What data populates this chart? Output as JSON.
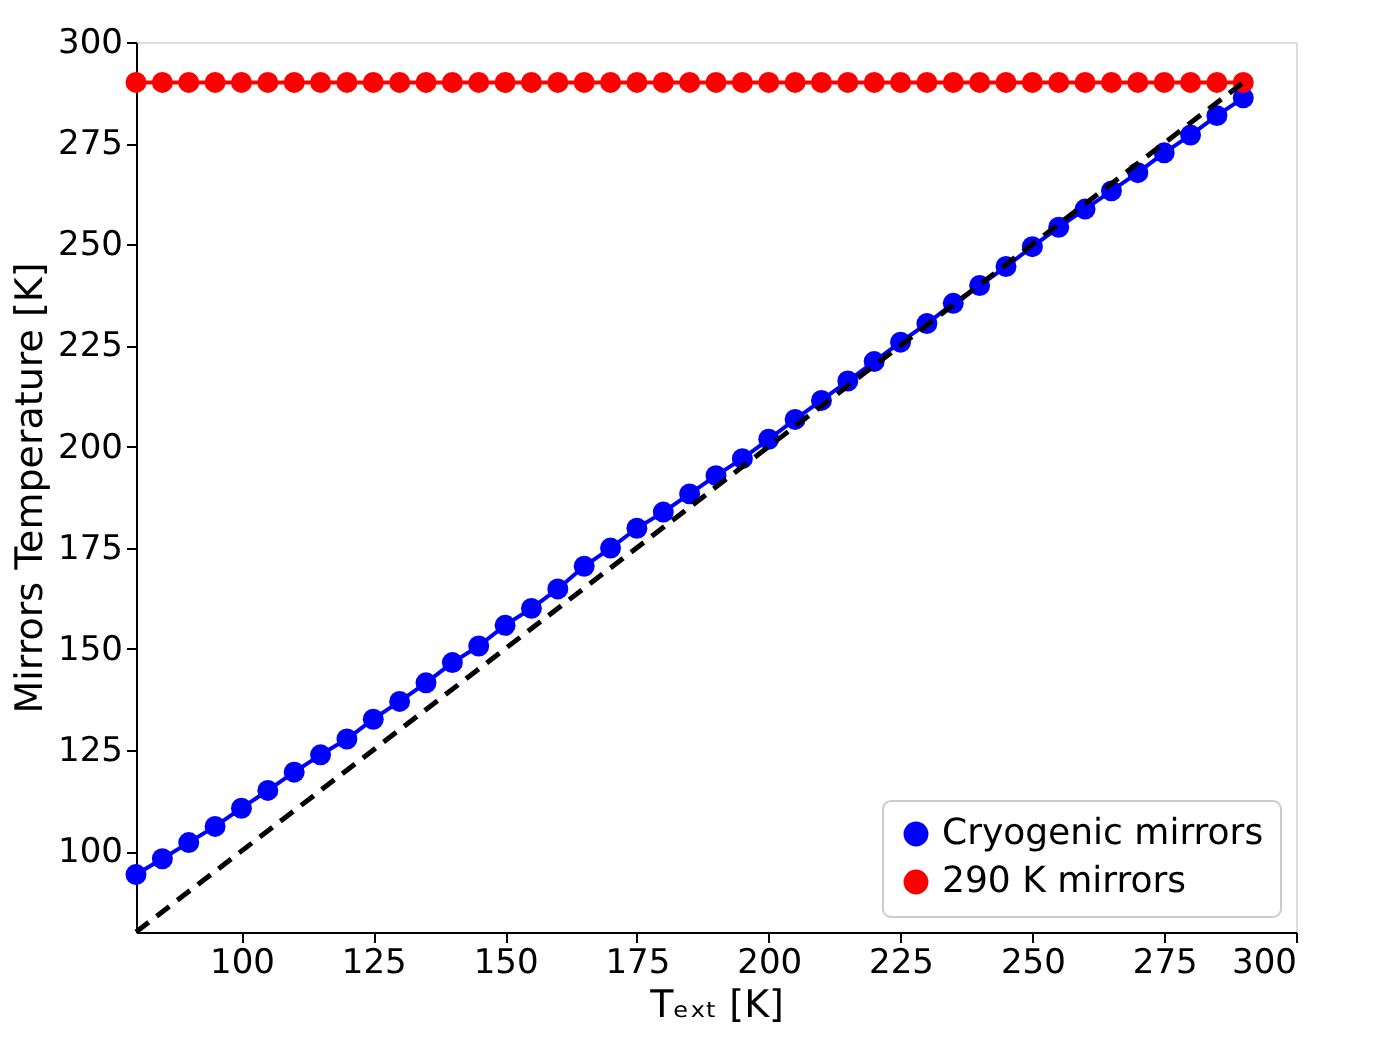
{
  "chart_data": {
    "type": "line",
    "xlabel": "Tₑₓₜ [K]",
    "ylabel": "Mirrors Temperature [K]",
    "x": [
      80,
      85,
      90,
      95,
      100,
      105,
      110,
      115,
      120,
      125,
      130,
      135,
      140,
      145,
      150,
      155,
      160,
      165,
      170,
      175,
      180,
      185,
      190,
      195,
      200,
      205,
      210,
      215,
      220,
      225,
      230,
      235,
      240,
      245,
      250,
      255,
      260,
      265,
      270,
      275,
      280,
      285,
      290
    ],
    "series": [
      {
        "name": "Cryogenic mirrors",
        "color": "#0000ff",
        "marker": "circle",
        "line_style": "solid",
        "values": [
          94.2,
          98.1,
          102.1,
          106.1,
          110.6,
          115.0,
          119.5,
          123.8,
          127.7,
          132.6,
          137.0,
          141.6,
          146.6,
          150.7,
          155.8,
          160.0,
          164.8,
          170.4,
          174.9,
          179.8,
          183.8,
          188.3,
          192.8,
          197.0,
          201.8,
          206.7,
          211.4,
          216.2,
          221.0,
          225.8,
          230.4,
          235.4,
          239.8,
          244.5,
          249.4,
          254.2,
          258.7,
          263.2,
          267.7,
          272.6,
          277.0,
          281.8,
          286.2
        ]
      },
      {
        "name": "290 K mirrors",
        "color": "#ff0000",
        "marker": "circle",
        "line_style": "solid",
        "values": [
          290,
          290,
          290,
          290,
          290,
          290,
          290,
          290,
          290,
          290,
          290,
          290,
          290,
          290,
          290,
          290,
          290,
          290,
          290,
          290,
          290,
          290,
          290,
          290,
          290,
          290,
          290,
          290,
          290,
          290,
          290,
          290,
          290,
          290,
          290,
          290,
          290,
          290,
          290,
          290,
          290,
          290,
          290
        ]
      },
      {
        "color": "#000000",
        "marker": "none",
        "line_style": "dashed",
        "x": [
          80,
          290
        ],
        "values": [
          80,
          290
        ]
      }
    ],
    "xlim": [
      80,
      300
    ],
    "xticks": [
      100,
      125,
      150,
      175,
      200,
      225,
      250,
      275,
      300
    ],
    "ylim": [
      80,
      300
    ],
    "yticks": [
      100,
      125,
      150,
      175,
      200,
      225,
      250,
      275,
      300
    ],
    "grid": false,
    "legend": "bottom right"
  }
}
